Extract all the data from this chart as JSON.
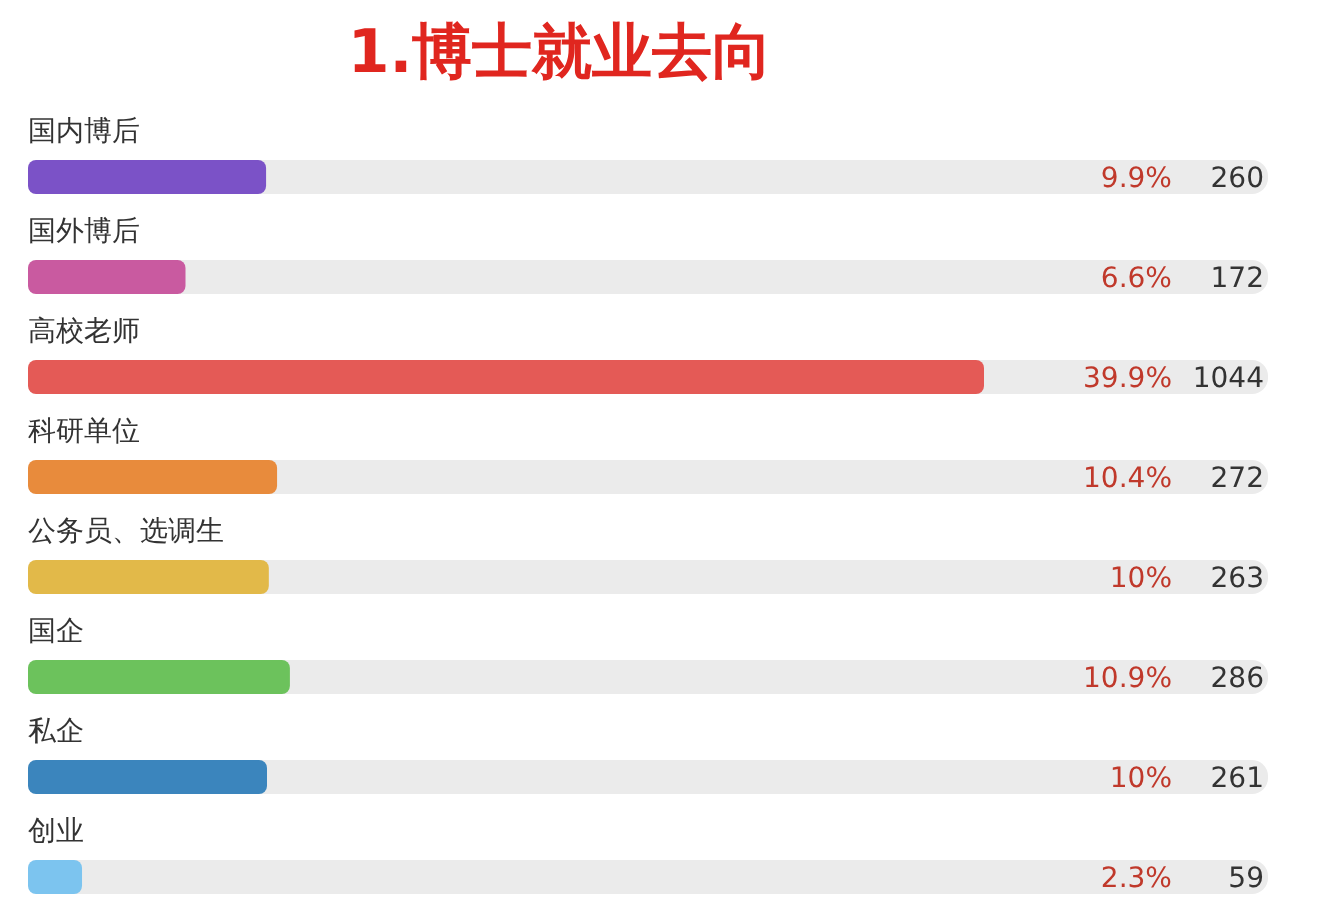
{
  "chart_data": {
    "type": "bar",
    "orientation": "horizontal",
    "title": "1.博士就业去向",
    "categories": [
      "国内博后",
      "国外博后",
      "高校老师",
      "科研单位",
      "公务员、选调生",
      "国企",
      "私企",
      "创业"
    ],
    "values": [
      260,
      172,
      1044,
      272,
      263,
      286,
      261,
      59
    ],
    "colors": [
      "#7b52c7",
      "#c95aa0",
      "#e45a56",
      "#e88b3c",
      "#e2b949",
      "#6cc25c",
      "#3b85bd",
      "#7cc4ef"
    ],
    "value_labels": [
      "260",
      "172",
      "1044",
      "272",
      "263",
      "286",
      "261",
      "59"
    ],
    "annotations": [
      "9.9%",
      "6.6%",
      "39.9%",
      "10.4%",
      "10%",
      "10.9%",
      "10%",
      "2.3%"
    ]
  }
}
